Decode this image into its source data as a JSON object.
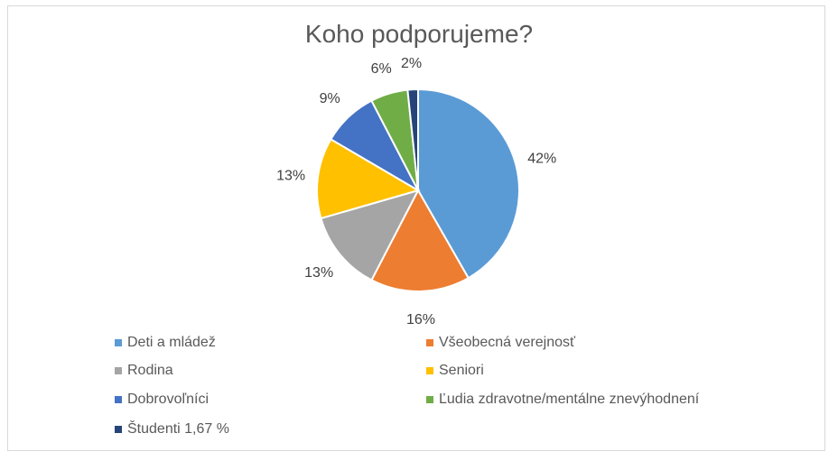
{
  "chart_data": {
    "type": "pie",
    "title": "Koho podporujeme?",
    "slices": [
      {
        "label": "Deti a mládež",
        "value": 42,
        "display": "42%",
        "color": "#5b9bd5"
      },
      {
        "label": "Všeobecná verejnosť",
        "value": 16,
        "display": "16%",
        "color": "#ed7d31"
      },
      {
        "label": "Rodina",
        "value": 13,
        "display": "13%",
        "color": "#a5a5a5"
      },
      {
        "label": "Seniori",
        "value": 13,
        "display": "13%",
        "color": "#ffc000"
      },
      {
        "label": "Dobrovoľníci",
        "value": 9,
        "display": "9%",
        "color": "#4472c4"
      },
      {
        "label": "Ľudia zdravotne/mentálne znevýhodnení",
        "value": 6,
        "display": "6%",
        "color": "#70ad47"
      },
      {
        "label": "Študenti 1,67 %",
        "value": 1.67,
        "display": "2%",
        "color": "#264478"
      }
    ],
    "legend_position": "bottom"
  }
}
